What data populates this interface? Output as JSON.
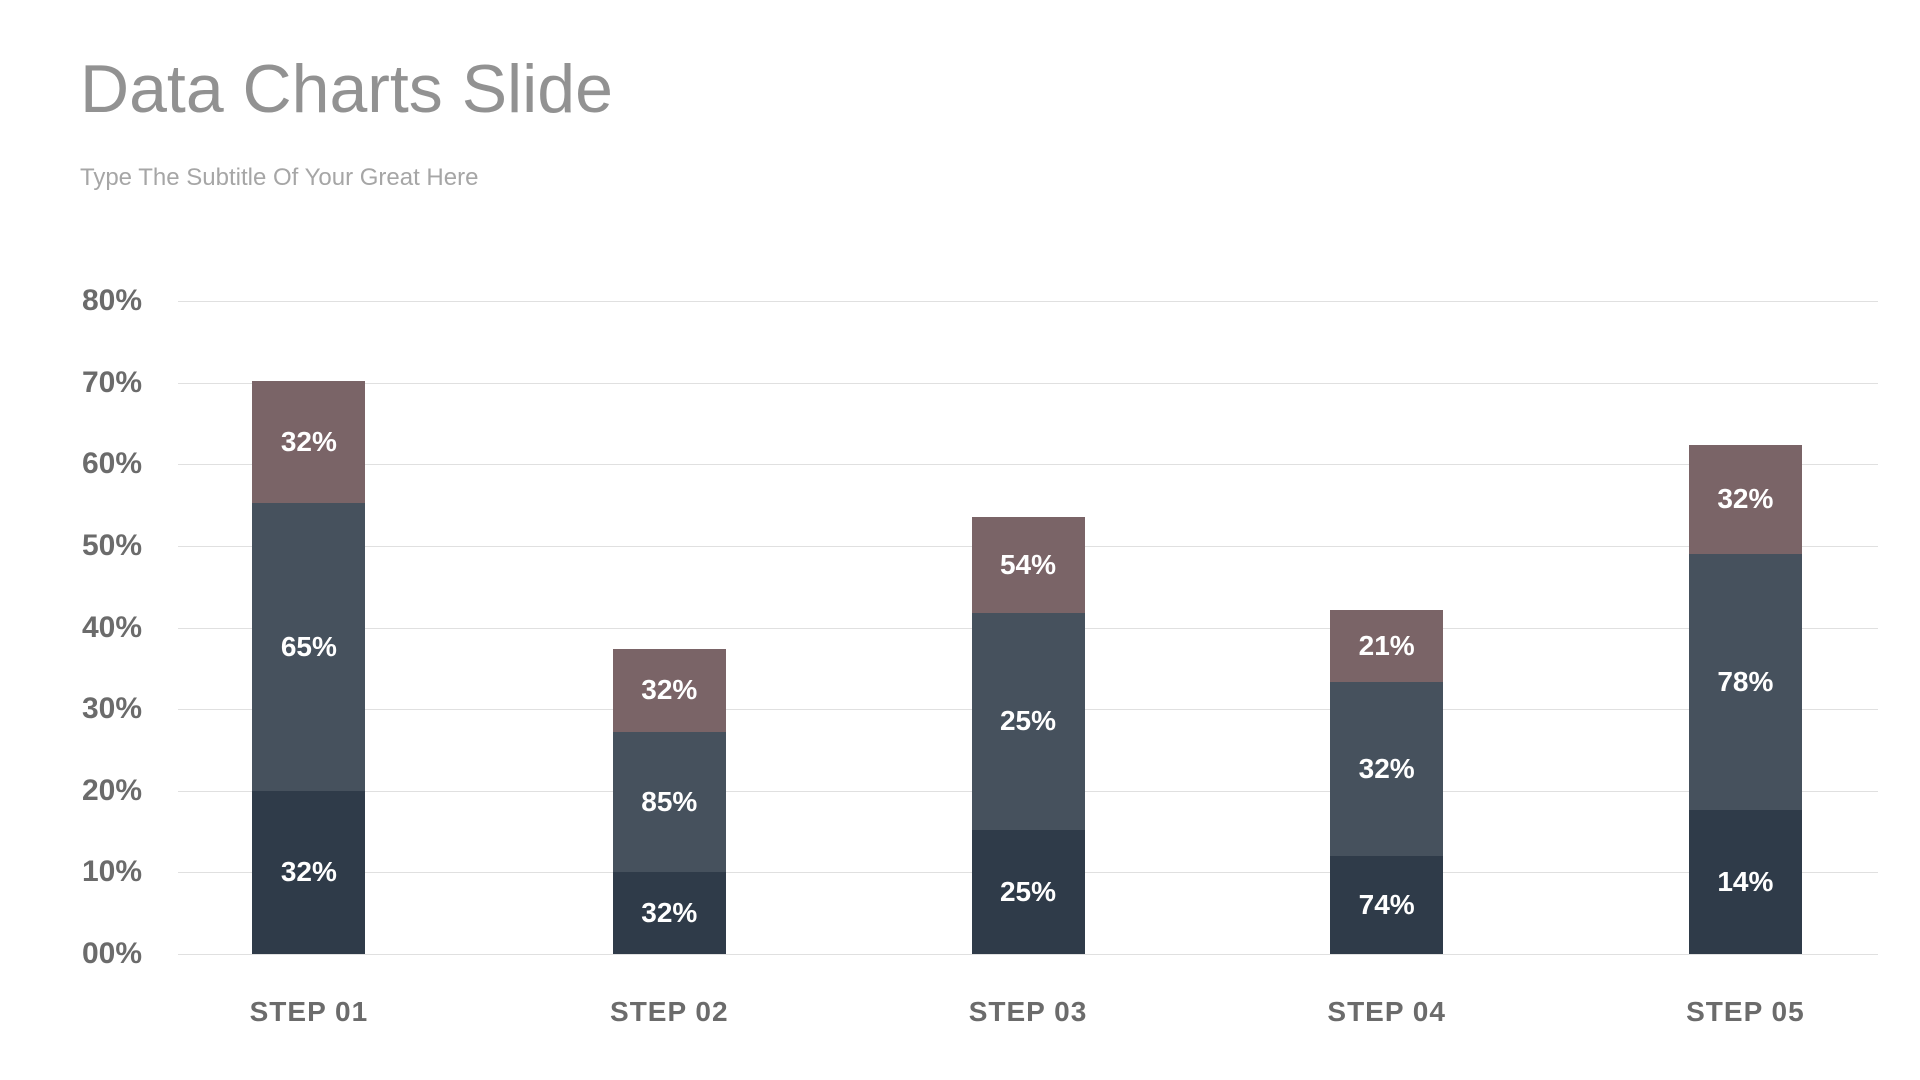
{
  "slide": {
    "title": "Data Charts Slide",
    "subtitle": "Type The Subtitle Of Your Great Here"
  },
  "colors": {
    "background": "#ffffff",
    "title_text": "#929292",
    "subtitle_text": "#a6a6a6",
    "axis_text": "#6b6b6b",
    "gridline": "#e0e0e0",
    "segment_label_text": "#ffffff",
    "segment_bottom": "#2f3b49",
    "segment_middle": "#46515d",
    "segment_top": "#7a6467"
  },
  "chart_data": {
    "type": "bar",
    "stacked": true,
    "title": "",
    "xlabel": "",
    "ylabel": "",
    "grid": true,
    "legend": "none",
    "categories": [
      "STEP 01",
      "STEP 02",
      "STEP 03",
      "STEP 04",
      "STEP 05"
    ],
    "y_axis": {
      "min": 0,
      "max": 80,
      "step": 10,
      "tick_labels_top_to_bottom": [
        "80%",
        "70%",
        "60%",
        "50%",
        "40%",
        "30%",
        "20%",
        "10%",
        "00%"
      ]
    },
    "series": [
      {
        "name": "bottom-segment",
        "color": "#2f3b49",
        "values": [
          20.0,
          10.0,
          15.2,
          12.0,
          17.6
        ],
        "labels": [
          "32%",
          "32%",
          "25%",
          "74%",
          "14%"
        ]
      },
      {
        "name": "middle-segment",
        "color": "#46515d",
        "values": [
          35.3,
          17.2,
          26.6,
          21.3,
          31.4
        ],
        "labels": [
          "65%",
          "85%",
          "25%",
          "32%",
          "78%"
        ]
      },
      {
        "name": "top-segment",
        "color": "#7a6467",
        "values": [
          14.9,
          10.2,
          11.8,
          8.8,
          13.4
        ],
        "labels": [
          "32%",
          "32%",
          "54%",
          "21%",
          "32%"
        ]
      }
    ],
    "stack_totals_visual": [
      70.2,
      37.4,
      53.6,
      42.1,
      62.4
    ]
  }
}
